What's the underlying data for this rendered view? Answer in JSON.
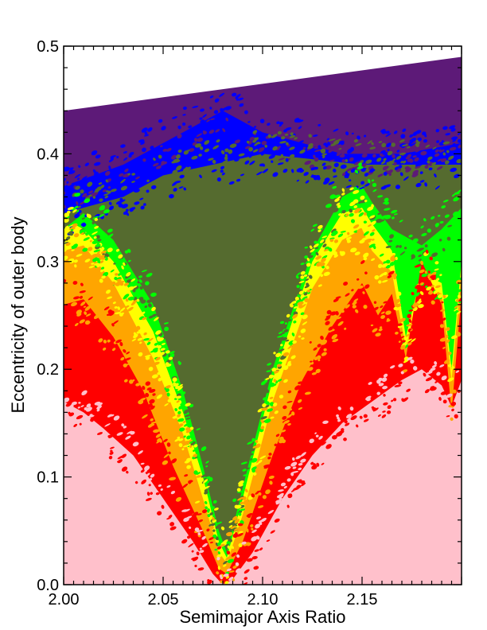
{
  "chart_data": {
    "type": "heatmap",
    "title": "",
    "xlabel": "Semimajor Axis Ratio",
    "ylabel": "Eccentricity of outer body",
    "xlim": [
      2.0,
      2.2
    ],
    "ylim": [
      0.0,
      0.5
    ],
    "xticks": [
      {
        "value": 2.0,
        "label": "2.00"
      },
      {
        "value": 2.05,
        "label": "2.05"
      },
      {
        "value": 2.1,
        "label": "2.10"
      },
      {
        "value": 2.15,
        "label": "2.15"
      }
    ],
    "yticks": [
      {
        "value": 0.0,
        "label": "0.0"
      },
      {
        "value": 0.1,
        "label": "0.1"
      },
      {
        "value": 0.2,
        "label": "0.2"
      },
      {
        "value": 0.3,
        "label": "0.3"
      },
      {
        "value": 0.4,
        "label": "0.4"
      },
      {
        "value": 0.5,
        "label": "0.5"
      }
    ],
    "grid": false,
    "legend": "none",
    "upper_boundary": {
      "x": [
        2.0,
        2.2
      ],
      "y": [
        0.44,
        0.49
      ]
    },
    "levels": [
      {
        "color": "#5d1a78",
        "boundary": [
          [
            2.0,
            0.41
          ],
          [
            2.05,
            0.43
          ],
          [
            2.1,
            0.44
          ],
          [
            2.15,
            0.45
          ],
          [
            2.2,
            0.46
          ]
        ]
      },
      {
        "color": "#0000ff",
        "boundary": [
          [
            2.0,
            0.37
          ],
          [
            2.03,
            0.39
          ],
          [
            2.06,
            0.42
          ],
          [
            2.08,
            0.44
          ],
          [
            2.1,
            0.42
          ],
          [
            2.14,
            0.4
          ],
          [
            2.17,
            0.4
          ],
          [
            2.2,
            0.41
          ]
        ]
      },
      {
        "color": "#556b2f",
        "boundary": [
          [
            2.0,
            0.345
          ],
          [
            2.03,
            0.36
          ],
          [
            2.05,
            0.38
          ],
          [
            2.1,
            0.4
          ],
          [
            2.15,
            0.39
          ],
          [
            2.2,
            0.39
          ]
        ]
      },
      {
        "color": "#00ff00",
        "boundary": [
          [
            2.0,
            0.33
          ],
          [
            2.01,
            0.345
          ],
          [
            2.025,
            0.32
          ],
          [
            2.045,
            0.26
          ],
          [
            2.06,
            0.18
          ],
          [
            2.07,
            0.11
          ],
          [
            2.078,
            0.05
          ],
          [
            2.082,
            0.03
          ],
          [
            2.09,
            0.09
          ],
          [
            2.105,
            0.2
          ],
          [
            2.125,
            0.31
          ],
          [
            2.14,
            0.36
          ],
          [
            2.15,
            0.37
          ],
          [
            2.155,
            0.355
          ],
          [
            2.165,
            0.33
          ],
          [
            2.18,
            0.315
          ],
          [
            2.19,
            0.33
          ],
          [
            2.2,
            0.35
          ]
        ]
      },
      {
        "color": "#ffff00",
        "boundary": [
          [
            2.0,
            0.33
          ],
          [
            2.005,
            0.335
          ],
          [
            2.01,
            0.33
          ],
          [
            2.025,
            0.3
          ],
          [
            2.045,
            0.235
          ],
          [
            2.06,
            0.16
          ],
          [
            2.07,
            0.1
          ],
          [
            2.078,
            0.04
          ],
          [
            2.082,
            0.025
          ],
          [
            2.09,
            0.08
          ],
          [
            2.105,
            0.19
          ],
          [
            2.125,
            0.3
          ],
          [
            2.14,
            0.345
          ],
          [
            2.15,
            0.35
          ],
          [
            2.155,
            0.335
          ],
          [
            2.165,
            0.31
          ],
          [
            2.172,
            0.23
          ],
          [
            2.18,
            0.29
          ],
          [
            2.19,
            0.28
          ],
          [
            2.195,
            0.2
          ],
          [
            2.2,
            0.3
          ]
        ]
      },
      {
        "color": "#ffa500",
        "boundary": [
          [
            2.0,
            0.31
          ],
          [
            2.01,
            0.315
          ],
          [
            2.025,
            0.28
          ],
          [
            2.045,
            0.21
          ],
          [
            2.06,
            0.14
          ],
          [
            2.07,
            0.08
          ],
          [
            2.078,
            0.03
          ],
          [
            2.082,
            0.02
          ],
          [
            2.09,
            0.065
          ],
          [
            2.105,
            0.17
          ],
          [
            2.125,
            0.275
          ],
          [
            2.14,
            0.32
          ],
          [
            2.15,
            0.33
          ],
          [
            2.155,
            0.31
          ],
          [
            2.165,
            0.29
          ],
          [
            2.172,
            0.22
          ],
          [
            2.18,
            0.28
          ],
          [
            2.19,
            0.27
          ],
          [
            2.195,
            0.19
          ],
          [
            2.2,
            0.29
          ]
        ]
      },
      {
        "color": "#ff0000",
        "boundary": [
          [
            2.0,
            0.26
          ],
          [
            2.01,
            0.265
          ],
          [
            2.025,
            0.23
          ],
          [
            2.04,
            0.18
          ],
          [
            2.055,
            0.11
          ],
          [
            2.07,
            0.05
          ],
          [
            2.078,
            0.015
          ],
          [
            2.082,
            0.01
          ],
          [
            2.09,
            0.04
          ],
          [
            2.105,
            0.12
          ],
          [
            2.12,
            0.19
          ],
          [
            2.135,
            0.24
          ],
          [
            2.15,
            0.28
          ],
          [
            2.158,
            0.25
          ],
          [
            2.165,
            0.27
          ],
          [
            2.172,
            0.21
          ],
          [
            2.18,
            0.3
          ],
          [
            2.19,
            0.26
          ],
          [
            2.195,
            0.16
          ],
          [
            2.2,
            0.27
          ]
        ]
      },
      {
        "color": "#ffc0cb",
        "boundary": [
          [
            2.0,
            0.17
          ],
          [
            2.01,
            0.16
          ],
          [
            2.02,
            0.145
          ],
          [
            2.035,
            0.12
          ],
          [
            2.05,
            0.08
          ],
          [
            2.065,
            0.04
          ],
          [
            2.075,
            0.01
          ],
          [
            2.08,
            0.0
          ],
          [
            2.085,
            0.005
          ],
          [
            2.095,
            0.03
          ],
          [
            2.11,
            0.08
          ],
          [
            2.125,
            0.12
          ],
          [
            2.14,
            0.15
          ],
          [
            2.155,
            0.17
          ],
          [
            2.17,
            0.19
          ],
          [
            2.18,
            0.2
          ],
          [
            2.19,
            0.185
          ],
          [
            2.195,
            0.165
          ],
          [
            2.2,
            0.19
          ]
        ]
      }
    ]
  }
}
